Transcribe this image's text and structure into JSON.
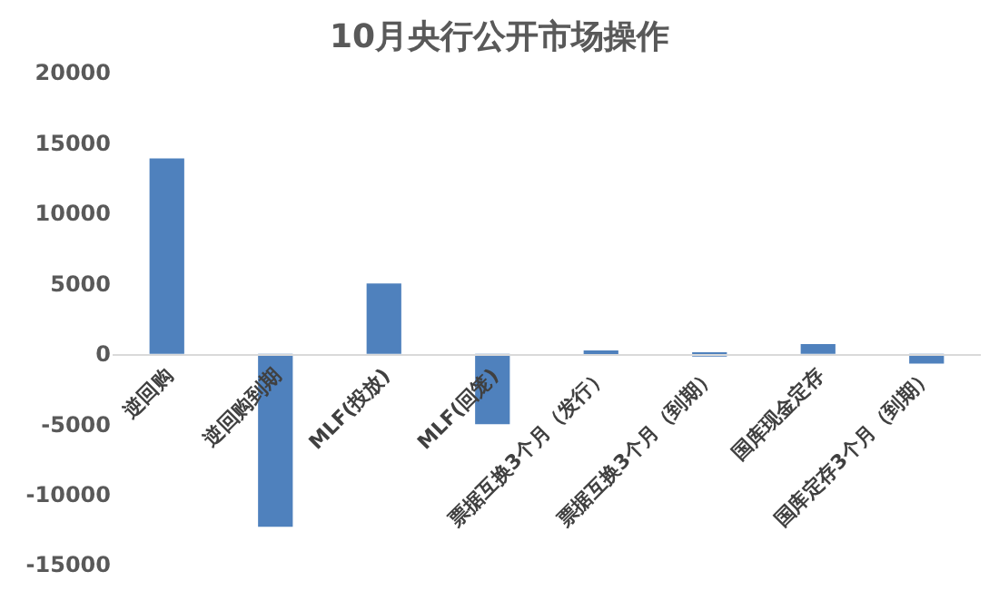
{
  "chart_data": {
    "type": "bar",
    "title": "10月央行公开市场操作",
    "categories": [
      "逆回购",
      "逆回购到期",
      "MLF(投放)",
      "MLF(回笼)",
      "票据互换3个月（发行）",
      "票据互换3个月（到期）",
      "国库现金定存",
      "国库定存3个月（到期）"
    ],
    "values": [
      13900,
      -12300,
      5000,
      -5000,
      150,
      -200,
      700,
      -700
    ],
    "color": "#4f81bd",
    "ylim": [
      -15000,
      20000
    ],
    "yticks": [
      -15000,
      -10000,
      -5000,
      0,
      5000,
      10000,
      15000,
      20000
    ],
    "grid": false,
    "legend": false
  }
}
